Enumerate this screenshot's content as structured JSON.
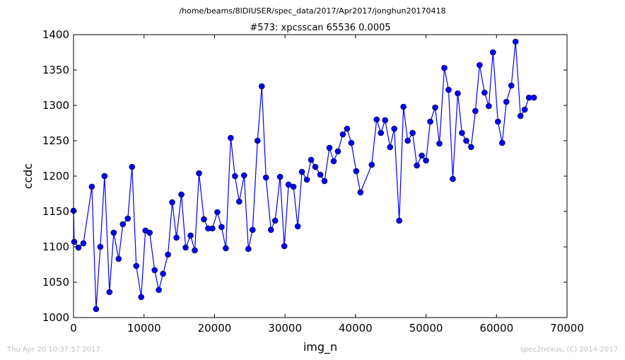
{
  "header": {
    "path": "/home/beams/8IDIUSER/spec_data/2017/Apr2017/jonghun20170418"
  },
  "footer": {
    "left": "Thu Apr 20 10:37:57 2017",
    "right": "spec2nexus, (C) 2014-2017"
  },
  "chart_data": {
    "type": "line",
    "title": "#573: xpcsscan 65536 0.0005",
    "xlabel": "img_n",
    "ylabel": "ccdc",
    "xlim": [
      0,
      70000
    ],
    "ylim": [
      1000,
      1400
    ],
    "xticks": [
      0,
      10000,
      20000,
      30000,
      40000,
      50000,
      60000,
      70000
    ],
    "yticks": [
      1000,
      1050,
      1100,
      1150,
      1200,
      1250,
      1300,
      1350,
      1400
    ],
    "grid": false,
    "marker": "circle",
    "color": "#0000ff",
    "series": [
      {
        "x": [
          0,
          100,
          700,
          1400,
          2600,
          3200,
          3800,
          4400,
          5100,
          5700,
          6400,
          7000,
          7700,
          8300,
          8900,
          9600,
          10200,
          10800,
          11500,
          12100,
          12700,
          13400,
          14000,
          14600,
          15300,
          15900,
          16600,
          17200,
          17800,
          18500,
          19100,
          19700,
          20400,
          21000,
          21600,
          22300,
          22900,
          23500,
          24200,
          24800,
          25400,
          26100,
          26700,
          27300,
          28000,
          28600,
          29300,
          29900,
          30500,
          31200,
          31800,
          32400,
          33100,
          33700,
          34300,
          35000,
          35600,
          36300,
          36900,
          37500,
          38200,
          38800,
          39400,
          40100,
          40700,
          42300,
          43000,
          43600,
          44200,
          44900,
          45500,
          46200,
          46800,
          47400,
          48100,
          48700,
          49400,
          50000,
          50600,
          51300,
          51900,
          52600,
          53200,
          53800,
          54500,
          55100,
          55700,
          56400,
          57000,
          57600,
          58300,
          58900,
          59500,
          60200,
          60800,
          61400,
          62100,
          62700,
          63400,
          64000,
          64600,
          65300
        ],
        "y": [
          1151,
          1107,
          1099,
          1105,
          1185,
          1012,
          1100,
          1200,
          1036,
          1120,
          1083,
          1132,
          1140,
          1213,
          1073,
          1029,
          1123,
          1120,
          1067,
          1039,
          1062,
          1089,
          1163,
          1113,
          1174,
          1099,
          1116,
          1095,
          1204,
          1139,
          1126,
          1126,
          1149,
          1128,
          1098,
          1254,
          1200,
          1164,
          1201,
          1097,
          1124,
          1250,
          1327,
          1198,
          1124,
          1137,
          1199,
          1101,
          1188,
          1185,
          1129,
          1206,
          1195,
          1223,
          1213,
          1202,
          1193,
          1240,
          1221,
          1235,
          1259,
          1267,
          1247,
          1207,
          1177,
          1216,
          1280,
          1261,
          1279,
          1241,
          1267,
          1137,
          1298,
          1250,
          1261,
          1215,
          1229,
          1222,
          1277,
          1297,
          1246,
          1353,
          1322,
          1196,
          1317,
          1261,
          1250,
          1241,
          1292,
          1357,
          1318,
          1299,
          1375,
          1277,
          1247,
          1305,
          1328,
          1390,
          1285,
          1294,
          1311,
          1311
        ]
      }
    ]
  }
}
